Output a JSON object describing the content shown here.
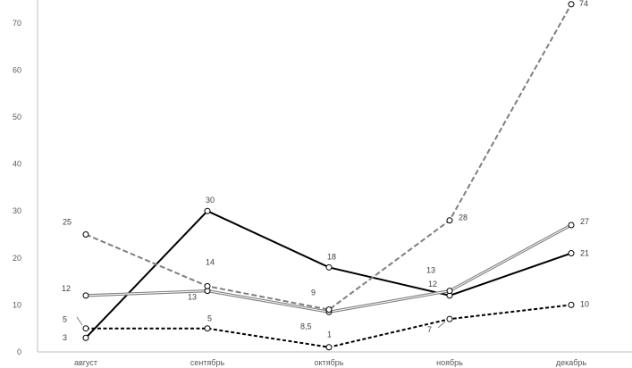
{
  "chart_data": {
    "type": "line",
    "title": "",
    "xlabel": "",
    "ylabel": "",
    "categories": [
      "август",
      "сентябрь",
      "октябрь",
      "ноябрь",
      "декабрь"
    ],
    "ylim": [
      0,
      75
    ],
    "yticks": [
      "0",
      "10",
      "20",
      "30",
      "40",
      "50",
      "60",
      "70"
    ],
    "grid": false,
    "legend": "none",
    "series": [
      {
        "values": [
          3,
          30,
          18,
          12,
          21
        ],
        "labels": [
          "3",
          "30",
          "18",
          "12",
          "21"
        ],
        "color": "#000000",
        "style": "solid"
      },
      {
        "values": [
          12,
          13,
          8.5,
          13,
          27
        ],
        "labels": [
          "12",
          "13",
          "8,5",
          "13",
          "27"
        ],
        "color": "#7f7f7f",
        "style": "double"
      },
      {
        "values": [
          25,
          14,
          9,
          28,
          74
        ],
        "labels": [
          "25",
          "14",
          "9",
          "28",
          "74"
        ],
        "color": "#7f7f7f",
        "style": "dashed"
      },
      {
        "values": [
          5,
          5,
          1,
          7,
          10
        ],
        "labels": [
          "5",
          "5",
          "1",
          "7",
          "10"
        ],
        "color": "#000000",
        "style": "dashed"
      }
    ]
  }
}
